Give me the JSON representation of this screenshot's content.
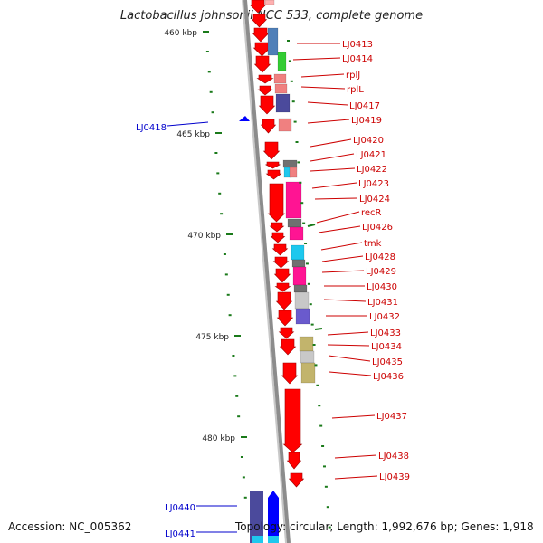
{
  "title": "Lactobacillus johnsonii NCC 533, complete genome",
  "footer": {
    "accession": "Accession: NC_005362",
    "summary": "Topology: circular; Length: 1,992,676 bp; Genes: 1,918"
  },
  "colors": {
    "backbone": "#8c8c8c",
    "tick": "#1a7a1a",
    "cds_forward": "#ff0000",
    "cds_reverse": "#0000ff",
    "label_forward": "#cc0000",
    "label_reverse": "#0000cc",
    "cog_blue": "#4f7fb8",
    "cog_green": "#33cc33",
    "cog_pink": "#f08080",
    "cog_indigo": "#4b4a9c",
    "cog_grey": "#707070",
    "cog_cyan": "#1ec8ee",
    "cog_magenta": "#ff1493",
    "cog_silver": "#c8c8c8",
    "cog_violet": "#6a5acd",
    "cog_olive": "#c2b46c"
  },
  "scale_labels": [
    "460 kbp",
    "465 kbp",
    "470 kbp",
    "475 kbp",
    "480 kbp"
  ],
  "genes_forward": [
    "LJ0413",
    "LJ0414",
    "rplJ",
    "rplL",
    "LJ0417",
    "LJ0419",
    "LJ0420",
    "LJ0421",
    "LJ0422",
    "LJ0423",
    "LJ0424",
    "recR",
    "LJ0426",
    "tmk",
    "LJ0428",
    "LJ0429",
    "LJ0430",
    "LJ0431",
    "LJ0432",
    "LJ0433",
    "LJ0434",
    "LJ0435",
    "LJ0436",
    "LJ0437",
    "LJ0438",
    "LJ0439"
  ],
  "genes_reverse": [
    "LJ0418",
    "LJ0440",
    "LJ0441"
  ]
}
